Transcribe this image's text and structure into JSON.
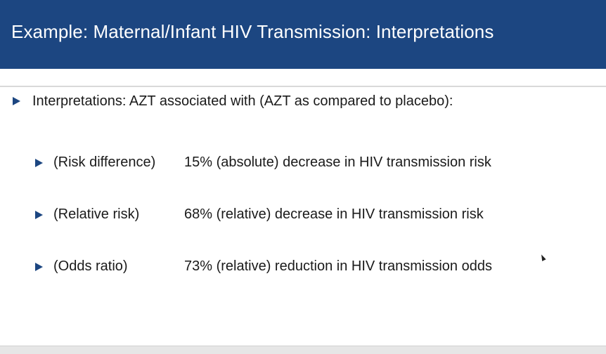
{
  "slide": {
    "title": "Example: Maternal/Infant HIV Transmission: Interpretations",
    "intro": "Interpretations: AZT associated with (AZT as compared to placebo):",
    "items": [
      {
        "label": "(Risk difference)",
        "value": "15% (absolute) decrease in HIV transmission risk"
      },
      {
        "label": "(Relative risk)",
        "value": "68% (relative) decrease in HIV transmission risk"
      },
      {
        "label": "(Odds ratio)",
        "value": "73% (relative) reduction in HIV transmission odds"
      }
    ]
  },
  "colors": {
    "title_bar": "#1c4681",
    "bullet": "#1c4681",
    "text": "#1a1a1a"
  },
  "icons": {
    "bullet": "triangle-bullet-icon",
    "cursor": "mouse-pointer-icon"
  }
}
